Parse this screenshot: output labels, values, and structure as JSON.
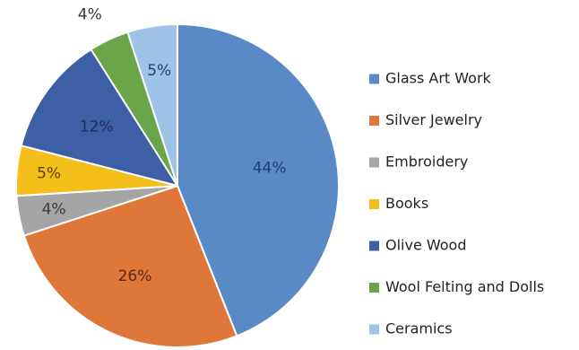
{
  "chart_data": {
    "type": "pie",
    "title": "",
    "legend_position": "right",
    "slices": [
      {
        "label": "Glass Art Work",
        "value": 44,
        "display": "44%",
        "color": "#5a8ac6"
      },
      {
        "label": "Silver Jewelry",
        "value": 26,
        "display": "26%",
        "color": "#e0773a"
      },
      {
        "label": "Embroidery",
        "value": 4,
        "display": "4%",
        "color": "#a5a5a5"
      },
      {
        "label": "Books",
        "value": 5,
        "display": "5%",
        "color": "#f5bf1b"
      },
      {
        "label": "Olive Wood",
        "value": 12,
        "display": "12%",
        "color": "#3c5fa6"
      },
      {
        "label": "Wool Felting and Dolls",
        "value": 4,
        "display": "4%",
        "color": "#6ba54a"
      },
      {
        "label": "Ceramics",
        "value": 5,
        "display": "5%",
        "color": "#9fc3e7"
      }
    ]
  }
}
